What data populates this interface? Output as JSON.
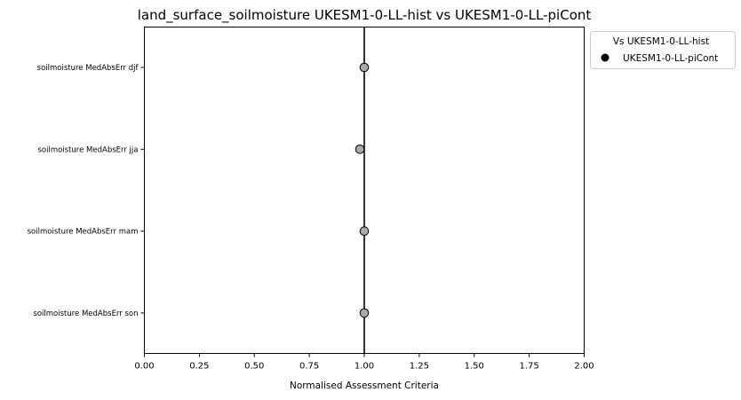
{
  "chart_data": {
    "type": "scatter",
    "title": "land_surface_soilmoisture UKESM1-0-LL-hist vs UKESM1-0-LL-piCont",
    "xlabel": "Normalised Assessment Criteria",
    "ylabel": "",
    "xlim": [
      0.0,
      2.0
    ],
    "xticks": [
      "0.00",
      "0.25",
      "0.50",
      "0.75",
      "1.00",
      "1.25",
      "1.50",
      "1.75",
      "2.00"
    ],
    "categories": [
      "soilmoisture MedAbsErr djf",
      "soilmoisture MedAbsErr jja",
      "soilmoisture MedAbsErr mam",
      "soilmoisture MedAbsErr son"
    ],
    "reference_line": 1.0,
    "grid": false,
    "legend": {
      "title": "Vs UKESM1-0-LL-hist",
      "placement": "outside-top-right",
      "entries": [
        "UKESM1-0-LL-piCont"
      ]
    },
    "series": [
      {
        "name": "UKESM1-0-LL-piCont",
        "values": [
          1.0,
          0.98,
          1.0,
          1.0
        ],
        "marker_color": "#a9a9a9",
        "edge_color": "#000000",
        "legend_color": "#000000"
      }
    ]
  }
}
